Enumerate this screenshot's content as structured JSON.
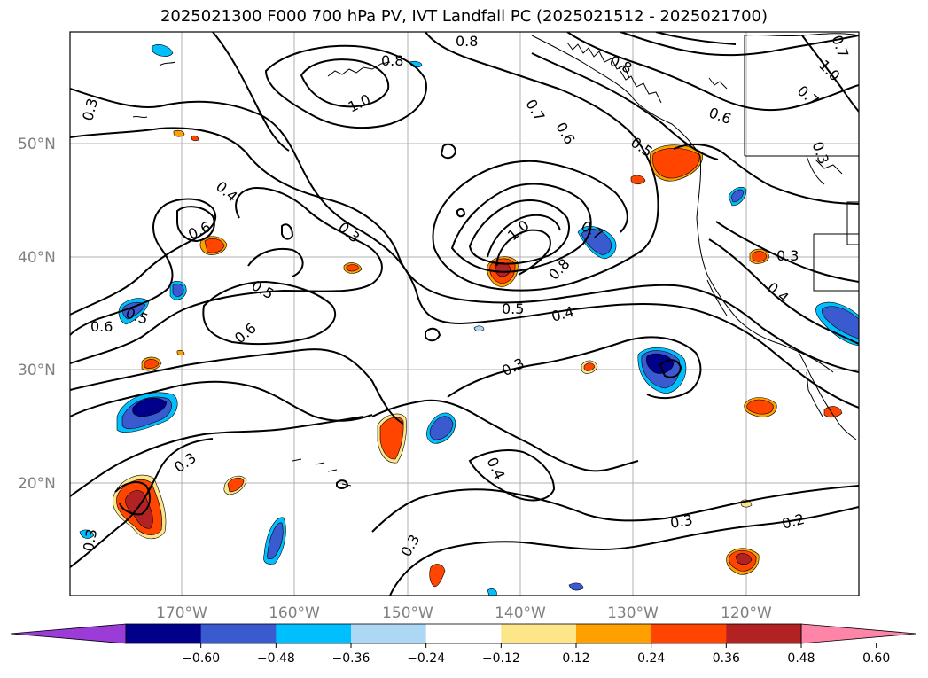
{
  "title": "2025021300 F000 700 hPa PV, IVT Landfall PC (2025021512 - 2025021700)",
  "map": {
    "lat_labels": [
      "50°N",
      "40°N",
      "30°N",
      "20°N"
    ],
    "lon_labels": [
      "170°W",
      "160°W",
      "150°W",
      "140°W",
      "130°W",
      "120°W"
    ],
    "gridlines": true,
    "contour_labels": [
      "0.8",
      "0.8",
      "0.8",
      "1.0",
      "1.0",
      "0.7",
      "0.6",
      "0.6",
      "0.5",
      "0.7",
      "0.4",
      "0.6",
      "0.3",
      "0.3",
      "0.5",
      "0.6",
      "0.5",
      "0.6",
      "1.0",
      "0.7",
      "0.8",
      "0.5",
      "0.4",
      "0.3",
      "0.3",
      "0.4",
      "0.3",
      "0.4",
      "0.3",
      "0.2",
      "0.3",
      "0.3",
      "0.3",
      "0.7"
    ]
  },
  "colorbar": {
    "ticks": [
      "−0.60",
      "−0.48",
      "−0.36",
      "−0.24",
      "−0.12",
      "0.12",
      "0.24",
      "0.36",
      "0.48",
      "0.60"
    ],
    "colors": [
      "#9b3bd8",
      "#00008b",
      "#3a5bd0",
      "#00bfff",
      "#add8f5",
      "#ffffff",
      "#fde68a",
      "#ff9f00",
      "#ff4500",
      "#b22222",
      "#ff85a8"
    ],
    "extend": "both"
  }
}
